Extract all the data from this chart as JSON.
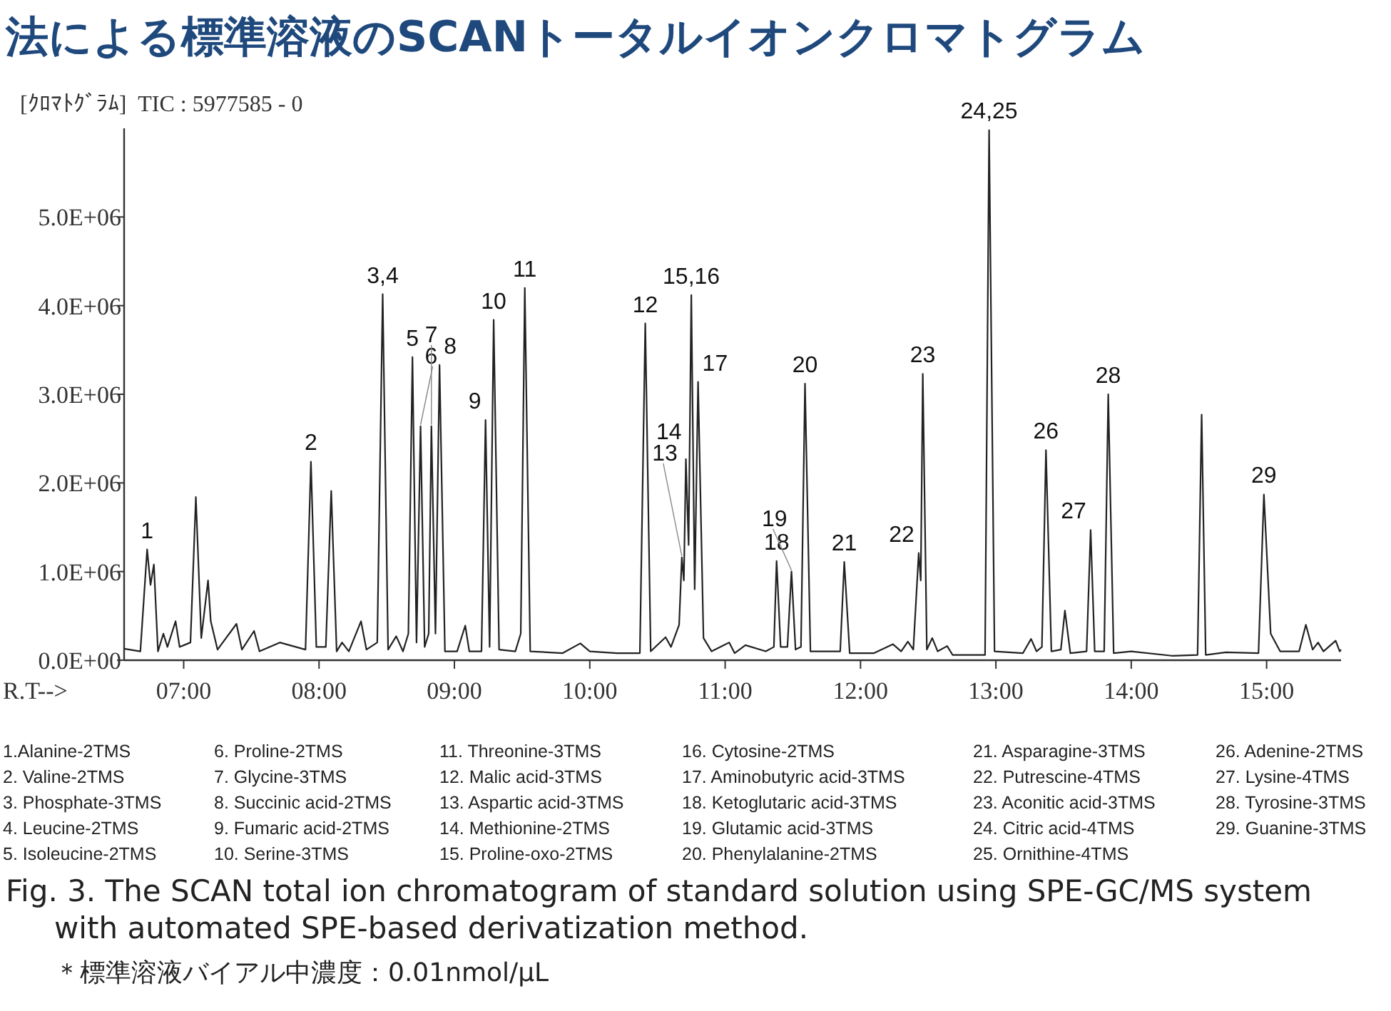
{
  "chart_data": {
    "type": "line",
    "title": "法による標準溶液のSCANトータルイオンクロマトグラム",
    "xlabel": "R.T-->",
    "xlim": [
      6.56,
      15.55
    ],
    "ylim": [
      0,
      6000000
    ],
    "xticks": [
      {
        "value": 7,
        "label": "07:00"
      },
      {
        "value": 8,
        "label": "08:00"
      },
      {
        "value": 9,
        "label": "09:00"
      },
      {
        "value": 10,
        "label": "10:00"
      },
      {
        "value": 11,
        "label": "11:00"
      },
      {
        "value": 12,
        "label": "12:00"
      },
      {
        "value": 13,
        "label": "13:00"
      },
      {
        "value": 14,
        "label": "14:00"
      },
      {
        "value": 15,
        "label": "15:00"
      }
    ],
    "yticks": [
      {
        "value": 0,
        "label": "0.0E+00"
      },
      {
        "value": 1000000,
        "label": "1.0E+06"
      },
      {
        "value": 2000000,
        "label": "2.0E+06"
      },
      {
        "value": 3000000,
        "label": "3.0E+06"
      },
      {
        "value": 4000000,
        "label": "4.0E+06"
      },
      {
        "value": 5000000,
        "label": "5.0E+06"
      }
    ],
    "x": [
      6.56,
      6.68,
      6.73,
      6.755,
      6.78,
      6.81,
      6.85,
      6.88,
      6.94,
      6.97,
      7.05,
      7.09,
      7.13,
      7.18,
      7.2,
      7.25,
      7.39,
      7.43,
      7.52,
      7.56,
      7.71,
      7.9,
      7.94,
      7.98,
      8.05,
      8.09,
      8.13,
      8.17,
      8.22,
      8.31,
      8.35,
      8.43,
      8.47,
      8.51,
      8.57,
      8.62,
      8.66,
      8.69,
      8.72,
      8.75,
      8.78,
      8.81,
      8.83,
      8.86,
      8.89,
      8.93,
      9.02,
      9.08,
      9.11,
      9.2,
      9.23,
      9.26,
      9.29,
      9.33,
      9.45,
      9.49,
      9.52,
      9.56,
      9.8,
      9.93,
      10.0,
      10.2,
      10.37,
      10.41,
      10.45,
      10.56,
      10.6,
      10.66,
      10.68,
      10.695,
      10.71,
      10.73,
      10.75,
      10.775,
      10.8,
      10.84,
      10.9,
      11.03,
      11.07,
      11.15,
      11.3,
      11.36,
      11.38,
      11.41,
      11.46,
      11.49,
      11.52,
      11.56,
      11.59,
      11.63,
      11.85,
      11.88,
      11.92,
      12.1,
      12.24,
      12.3,
      12.35,
      12.39,
      12.43,
      12.445,
      12.46,
      12.49,
      12.53,
      12.57,
      12.64,
      12.68,
      12.92,
      12.95,
      12.99,
      13.2,
      13.26,
      13.3,
      13.34,
      13.37,
      13.41,
      13.48,
      13.51,
      13.55,
      13.67,
      13.7,
      13.73,
      13.8,
      13.83,
      13.87,
      14.0,
      14.3,
      14.49,
      14.52,
      14.55,
      14.7,
      14.94,
      14.98,
      15.03,
      15.1,
      15.24,
      15.29,
      15.34,
      15.38,
      15.42,
      15.51,
      15.54,
      15.55
    ],
    "series": [
      {
        "color": "#222222",
        "values": [
          130000,
          100000,
          1250000,
          850000,
          1080000,
          100000,
          300000,
          150000,
          440000,
          150000,
          200000,
          1840000,
          250000,
          900000,
          440000,
          120000,
          410000,
          120000,
          330000,
          100000,
          200000,
          120000,
          2240000,
          150000,
          150000,
          1910000,
          100000,
          200000,
          100000,
          440000,
          120000,
          200000,
          4130000,
          120000,
          270000,
          100000,
          300000,
          3420000,
          200000,
          2640000,
          150000,
          300000,
          2640000,
          300000,
          3330000,
          100000,
          100000,
          390000,
          100000,
          100000,
          2710000,
          150000,
          3840000,
          120000,
          100000,
          300000,
          4200000,
          100000,
          80000,
          190000,
          100000,
          80000,
          80000,
          3800000,
          100000,
          260000,
          150000,
          400000,
          1160000,
          900000,
          2270000,
          1300000,
          4120000,
          800000,
          3140000,
          250000,
          100000,
          200000,
          80000,
          170000,
          100000,
          150000,
          1120000,
          150000,
          150000,
          1000000,
          120000,
          150000,
          3120000,
          100000,
          100000,
          1110000,
          80000,
          80000,
          180000,
          100000,
          210000,
          120000,
          1210000,
          900000,
          3230000,
          120000,
          250000,
          100000,
          160000,
          60000,
          60000,
          5980000,
          100000,
          80000,
          240000,
          100000,
          150000,
          2370000,
          100000,
          120000,
          560000,
          80000,
          100000,
          1470000,
          100000,
          100000,
          3000000,
          80000,
          100000,
          50000,
          60000,
          2770000,
          60000,
          90000,
          80000,
          1870000,
          300000,
          100000,
          100000,
          400000,
          120000,
          200000,
          100000,
          220000,
          100000,
          120000
        ]
      }
    ],
    "annotations": [
      "[ｸﾛﾏﾄｸﾞﾗﾑ]  TIC : 5977585 - 0",
      {
        "text": "1",
        "x": 6.73,
        "y": 1250000
      },
      {
        "text": "2",
        "x": 7.94,
        "y": 2240000
      },
      {
        "text": "3,4",
        "x": 8.47,
        "y": 4130000
      },
      {
        "text": "5",
        "x": 8.69,
        "y": 3420000
      },
      {
        "text": "6",
        "x": 8.75,
        "y": 2640000
      },
      {
        "text": "7",
        "x": 8.83,
        "y": 2640000
      },
      {
        "text": "8",
        "x": 8.89,
        "y": 3330000
      },
      {
        "text": "9",
        "x": 9.23,
        "y": 2710000
      },
      {
        "text": "10",
        "x": 9.29,
        "y": 3840000
      },
      {
        "text": "11",
        "x": 9.52,
        "y": 4200000
      },
      {
        "text": "12",
        "x": 10.41,
        "y": 3800000
      },
      {
        "text": "13",
        "x": 10.68,
        "y": 1160000
      },
      {
        "text": "14",
        "x": 10.71,
        "y": 2270000
      },
      {
        "text": "15,16",
        "x": 10.75,
        "y": 4120000
      },
      {
        "text": "17",
        "x": 10.8,
        "y": 3140000
      },
      {
        "text": "18",
        "x": 11.38,
        "y": 1120000
      },
      {
        "text": "19",
        "x": 11.49,
        "y": 1000000
      },
      {
        "text": "20",
        "x": 11.59,
        "y": 3120000
      },
      {
        "text": "21",
        "x": 11.88,
        "y": 1110000
      },
      {
        "text": "22",
        "x": 12.43,
        "y": 1210000
      },
      {
        "text": "23",
        "x": 12.46,
        "y": 3230000
      },
      {
        "text": "24,25",
        "x": 12.95,
        "y": 5980000
      },
      {
        "text": "26",
        "x": 13.37,
        "y": 2370000
      },
      {
        "text": "27",
        "x": 13.7,
        "y": 1470000
      },
      {
        "text": "28",
        "x": 13.83,
        "y": 3000000
      },
      {
        "text": "29",
        "x": 14.98,
        "y": 1870000
      },
      "1.Alanine-2TMS",
      "2. Valine-2TMS",
      "3. Phosphate-3TMS",
      "4. Leucine-2TMS",
      "5. Isoleucine-2TMS",
      "6. Proline-2TMS",
      "7. Glycine-3TMS",
      "8. Succinic acid-2TMS",
      "9. Fumaric acid-2TMS",
      "10. Serine-3TMS",
      "11. Threonine-3TMS",
      "12. Malic acid-3TMS",
      "13. Aspartic acid-3TMS",
      "14. Methionine-2TMS",
      "15. Proline-oxo-2TMS",
      "16. Cytosine-2TMS",
      "17. Aminobutyric acid-3TMS",
      "18. Ketoglutaric acid-3TMS",
      "19. Glutamic acid-3TMS",
      "20. Phenylalanine-2TMS",
      "21. Asparagine-3TMS",
      "22. Putrescine-4TMS",
      "23. Aconitic acid-3TMS",
      "24. Citric acid-4TMS",
      "25. Ornithine-4TMS",
      "26. Adenine-2TMS",
      "27. Lysine-4TMS",
      "28. Tyrosine-3TMS",
      "29. Guanine-3TMS",
      "Fig. 3. The SCAN total ion chromatogram of standard solution using SPE-GC/MS system  with automated SPE-based derivatization method.",
      "＊標準溶液バイアル中濃度：0.01nmol/μL"
    ]
  }
}
